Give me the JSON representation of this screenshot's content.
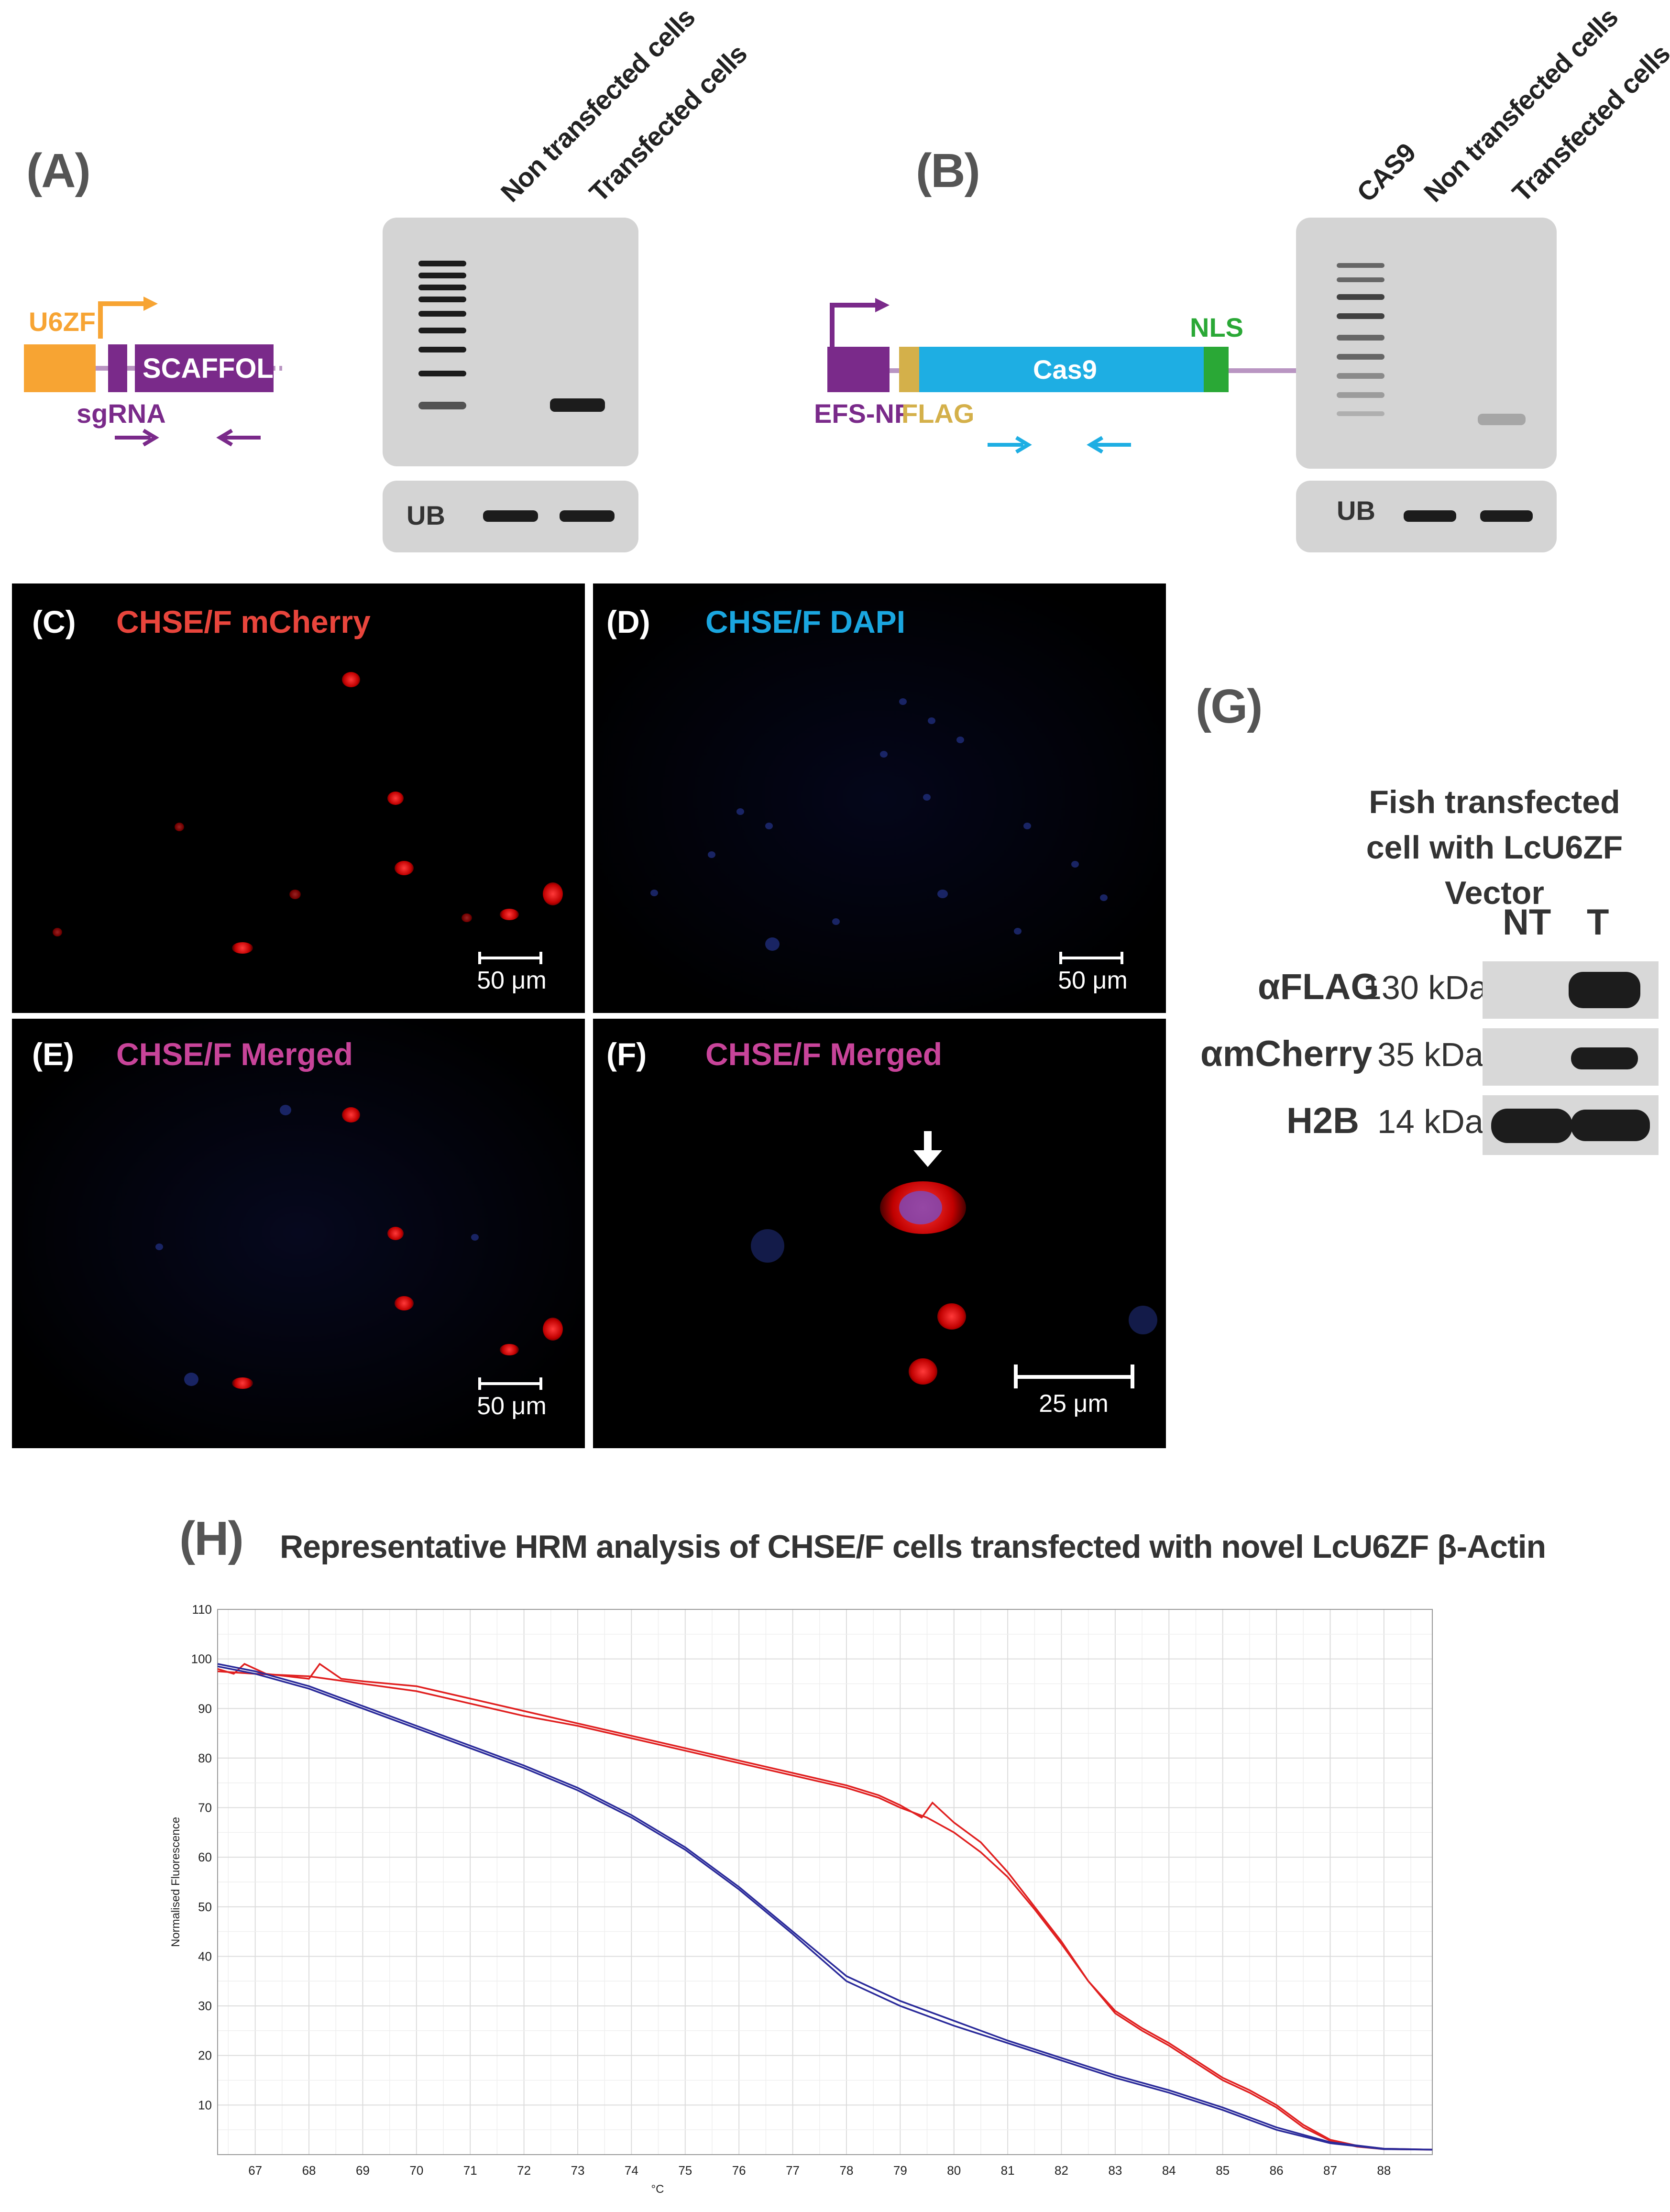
{
  "panels": {
    "A": {
      "label": "(A)",
      "lanes": [
        "Non transfected cells",
        "Transfected cells"
      ],
      "construct": {
        "promoter": "U6ZF",
        "element": "SCAFFOLD",
        "rna": "sgRNA"
      },
      "loading_control": "UB"
    },
    "B": {
      "label": "(B)",
      "lanes": [
        "CAS9",
        "Non transfected cells",
        "Transfected cells"
      ],
      "construct": {
        "promoter": "EFS-NF",
        "tag": "FLAG",
        "gene": "Cas9",
        "signal": "NLS"
      },
      "loading_control": "UB"
    },
    "C": {
      "label": "(C)",
      "title": "CHSE/F mCherry",
      "scale": "50 μm",
      "title_color": "#e8453c"
    },
    "D": {
      "label": "(D)",
      "title": "CHSE/F DAPI",
      "scale": "50 μm",
      "title_color": "#1aa6e0"
    },
    "E": {
      "label": "(E)",
      "title": "CHSE/F Merged",
      "scale": "50 μm",
      "title_color": "#c8449a"
    },
    "F": {
      "label": "(F)",
      "title": "CHSE/F Merged",
      "scale": "25 μm",
      "title_color": "#c8449a"
    },
    "G": {
      "label": "(G)",
      "title_line1": "Fish transfected",
      "title_line2": "cell with LcU6ZF Vector",
      "columns": [
        "NT",
        "T"
      ],
      "rows": [
        {
          "antibody": "αFLAG",
          "size": "130 kDa"
        },
        {
          "antibody": "αmCherry",
          "size": "35 kDa"
        },
        {
          "antibody": "H2B",
          "size": "14 kDa"
        }
      ]
    },
    "H": {
      "label": "(H)",
      "title": "Representative HRM analysis of CHSE/F cells transfected with novel LcU6ZF β-Actin"
    }
  },
  "colors": {
    "orange": "#f7a433",
    "purple": "#7a2a8a",
    "cyan": "#1eaee3",
    "gold": "#d4b04a",
    "green": "#2aa836",
    "red_series": "#e02020",
    "blue_series": "#2a2a9a"
  },
  "chart_data": {
    "type": "line",
    "xlabel": "°C",
    "ylabel": "Normalised Fluorescence",
    "xlim": [
      66.3,
      88.9
    ],
    "ylim": [
      0,
      110
    ],
    "xticks": [
      67,
      68,
      69,
      70,
      71,
      72,
      73,
      74,
      75,
      76,
      77,
      78,
      79,
      80,
      81,
      82,
      83,
      84,
      85,
      86,
      87,
      88
    ],
    "yticks": [
      10,
      20,
      30,
      40,
      50,
      60,
      70,
      80,
      90,
      100,
      110
    ],
    "grid": true,
    "series": [
      {
        "color": "#e02020",
        "x": [
          66.3,
          66.6,
          66.8,
          67.2,
          67.6,
          68.0,
          68.2,
          68.6,
          69.0,
          70.0,
          71.0,
          72.0,
          73.0,
          74.0,
          75.0,
          76.0,
          77.0,
          78.0,
          78.6,
          79.0,
          79.4,
          79.6,
          80.0,
          80.5,
          81.0,
          81.5,
          82.0,
          82.5,
          83.0,
          83.5,
          84.0,
          84.5,
          85.0,
          85.5,
          86.0,
          86.5,
          87.0,
          87.5,
          88.0,
          88.9
        ],
        "y": [
          98,
          97,
          99,
          97,
          96.5,
          96,
          99,
          96,
          95.5,
          94.5,
          92,
          89.5,
          87,
          84.5,
          82,
          79.5,
          77,
          74.5,
          72.5,
          70.5,
          68,
          71,
          67,
          63,
          57,
          50,
          43,
          35,
          29,
          25.5,
          22.5,
          19,
          15.5,
          13,
          10,
          6,
          3,
          1.8,
          1.2,
          1
        ]
      },
      {
        "color": "#e02020",
        "x": [
          66.3,
          67.0,
          68.0,
          69.0,
          70.0,
          71.0,
          72.0,
          73.0,
          74.0,
          75.0,
          76.0,
          77.0,
          78.0,
          78.6,
          79.0,
          79.5,
          80.0,
          80.5,
          81.0,
          81.5,
          82.0,
          82.5,
          83.0,
          83.5,
          84.0,
          84.5,
          85.0,
          85.5,
          86.0,
          86.5,
          87.0,
          87.5,
          88.0,
          88.9
        ],
        "y": [
          97.5,
          97,
          96.5,
          95,
          93.5,
          91,
          88.5,
          86.5,
          84,
          81.5,
          79,
          76.5,
          74,
          72,
          70,
          68,
          65,
          61,
          56,
          49.5,
          42.5,
          35,
          28.5,
          25,
          22,
          18.5,
          15,
          12.5,
          9.5,
          5.5,
          2.8,
          1.6,
          1.1,
          1
        ]
      },
      {
        "color": "#2a2a9a",
        "x": [
          66.3,
          67.0,
          68.0,
          69.0,
          70.0,
          71.0,
          72.0,
          73.0,
          74.0,
          75.0,
          76.0,
          77.0,
          78.0,
          79.0,
          80.0,
          81.0,
          82.0,
          83.0,
          84.0,
          85.0,
          86.0,
          87.0,
          88.0,
          88.9
        ],
        "y": [
          99,
          97.5,
          94.5,
          90.5,
          86.5,
          82.5,
          78.5,
          74,
          68.5,
          62,
          54,
          45,
          36,
          31,
          27,
          23,
          19.5,
          16,
          13,
          9.5,
          5.5,
          2.5,
          1.2,
          1
        ]
      },
      {
        "color": "#2a2a9a",
        "x": [
          66.3,
          67.0,
          68.0,
          69.0,
          70.0,
          71.0,
          72.0,
          73.0,
          74.0,
          75.0,
          76.0,
          77.0,
          78.0,
          79.0,
          80.0,
          81.0,
          82.0,
          83.0,
          84.0,
          85.0,
          86.0,
          87.0,
          88.0,
          88.9
        ],
        "y": [
          98.5,
          97,
          94,
          90,
          86,
          82,
          78,
          73.5,
          68,
          61.5,
          53.5,
          44.5,
          35,
          30,
          26,
          22.5,
          19,
          15.5,
          12.5,
          9,
          5,
          2.3,
          1.1,
          1
        ]
      }
    ]
  }
}
